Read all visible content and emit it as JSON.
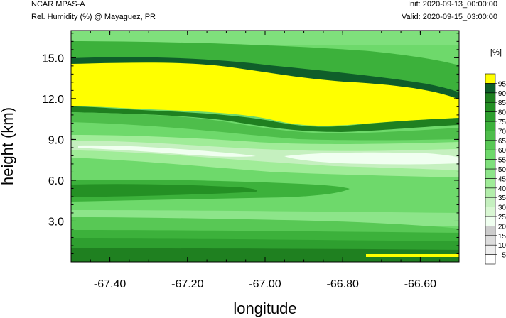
{
  "header": {
    "model": "NCAR MPAS-A",
    "variable": "Rel. Humidity (%) @ Mayaguez, PR",
    "init": "Init: 2020-09-13_00:00:00",
    "valid": "Valid: 2020-09-15_03:00:00"
  },
  "chart_data": {
    "type": "heatmap",
    "subtype": "filled-contour cross-section",
    "xlabel": "longitude",
    "ylabel": "height (km)",
    "xlim": [
      -67.5,
      -66.5
    ],
    "ylim": [
      0,
      17.0
    ],
    "xticks": [
      -67.4,
      -67.2,
      -67.0,
      -66.8,
      -66.6
    ],
    "xtick_labels": [
      "-67.40",
      "-67.20",
      "-67.00",
      "-66.80",
      "-66.60"
    ],
    "yticks": [
      3.0,
      6.0,
      9.0,
      12.0,
      15.0
    ],
    "ytick_labels": [
      "3.0",
      "6.0",
      "9.0",
      "12.0",
      "15.0"
    ],
    "colorbar": {
      "unit_label": "[%]",
      "levels": [
        5,
        10,
        15,
        20,
        25,
        30,
        35,
        40,
        45,
        50,
        55,
        60,
        65,
        70,
        75,
        80,
        85,
        90,
        95
      ],
      "level_labels": [
        "5",
        "10",
        "15",
        "20",
        "25",
        "30",
        "35",
        "40",
        "45",
        "50",
        "55",
        "60",
        "65",
        "70",
        "75",
        "80",
        "85",
        "90",
        "95"
      ],
      "colors": [
        "#ffffff",
        "#eeeeee",
        "#dddddd",
        "#cccccc",
        "#f0fff0",
        "#d9f7d3",
        "#c5f0bf",
        "#b3eeab",
        "#a0ec98",
        "#8de58a",
        "#7fe07c",
        "#6ed96b",
        "#58c855",
        "#4ebe4b",
        "#3cb13b",
        "#2e9f2f",
        "#249024",
        "#1f8020",
        "#0f5e2a",
        "#ffff00"
      ]
    },
    "features": [
      {
        "name": "upper-high-humidity-band",
        "level": 95,
        "note": "yellow band between ~11 and ~14.5 km, descending to ~10 km near -66.9"
      },
      {
        "name": "moist-band-5km",
        "level": 70,
        "note": "darker green layer near 5 km between -67.5 and -66.8"
      },
      {
        "name": "dry-layer-8km",
        "level": 30,
        "note": "pale layer near 8 km"
      }
    ]
  }
}
